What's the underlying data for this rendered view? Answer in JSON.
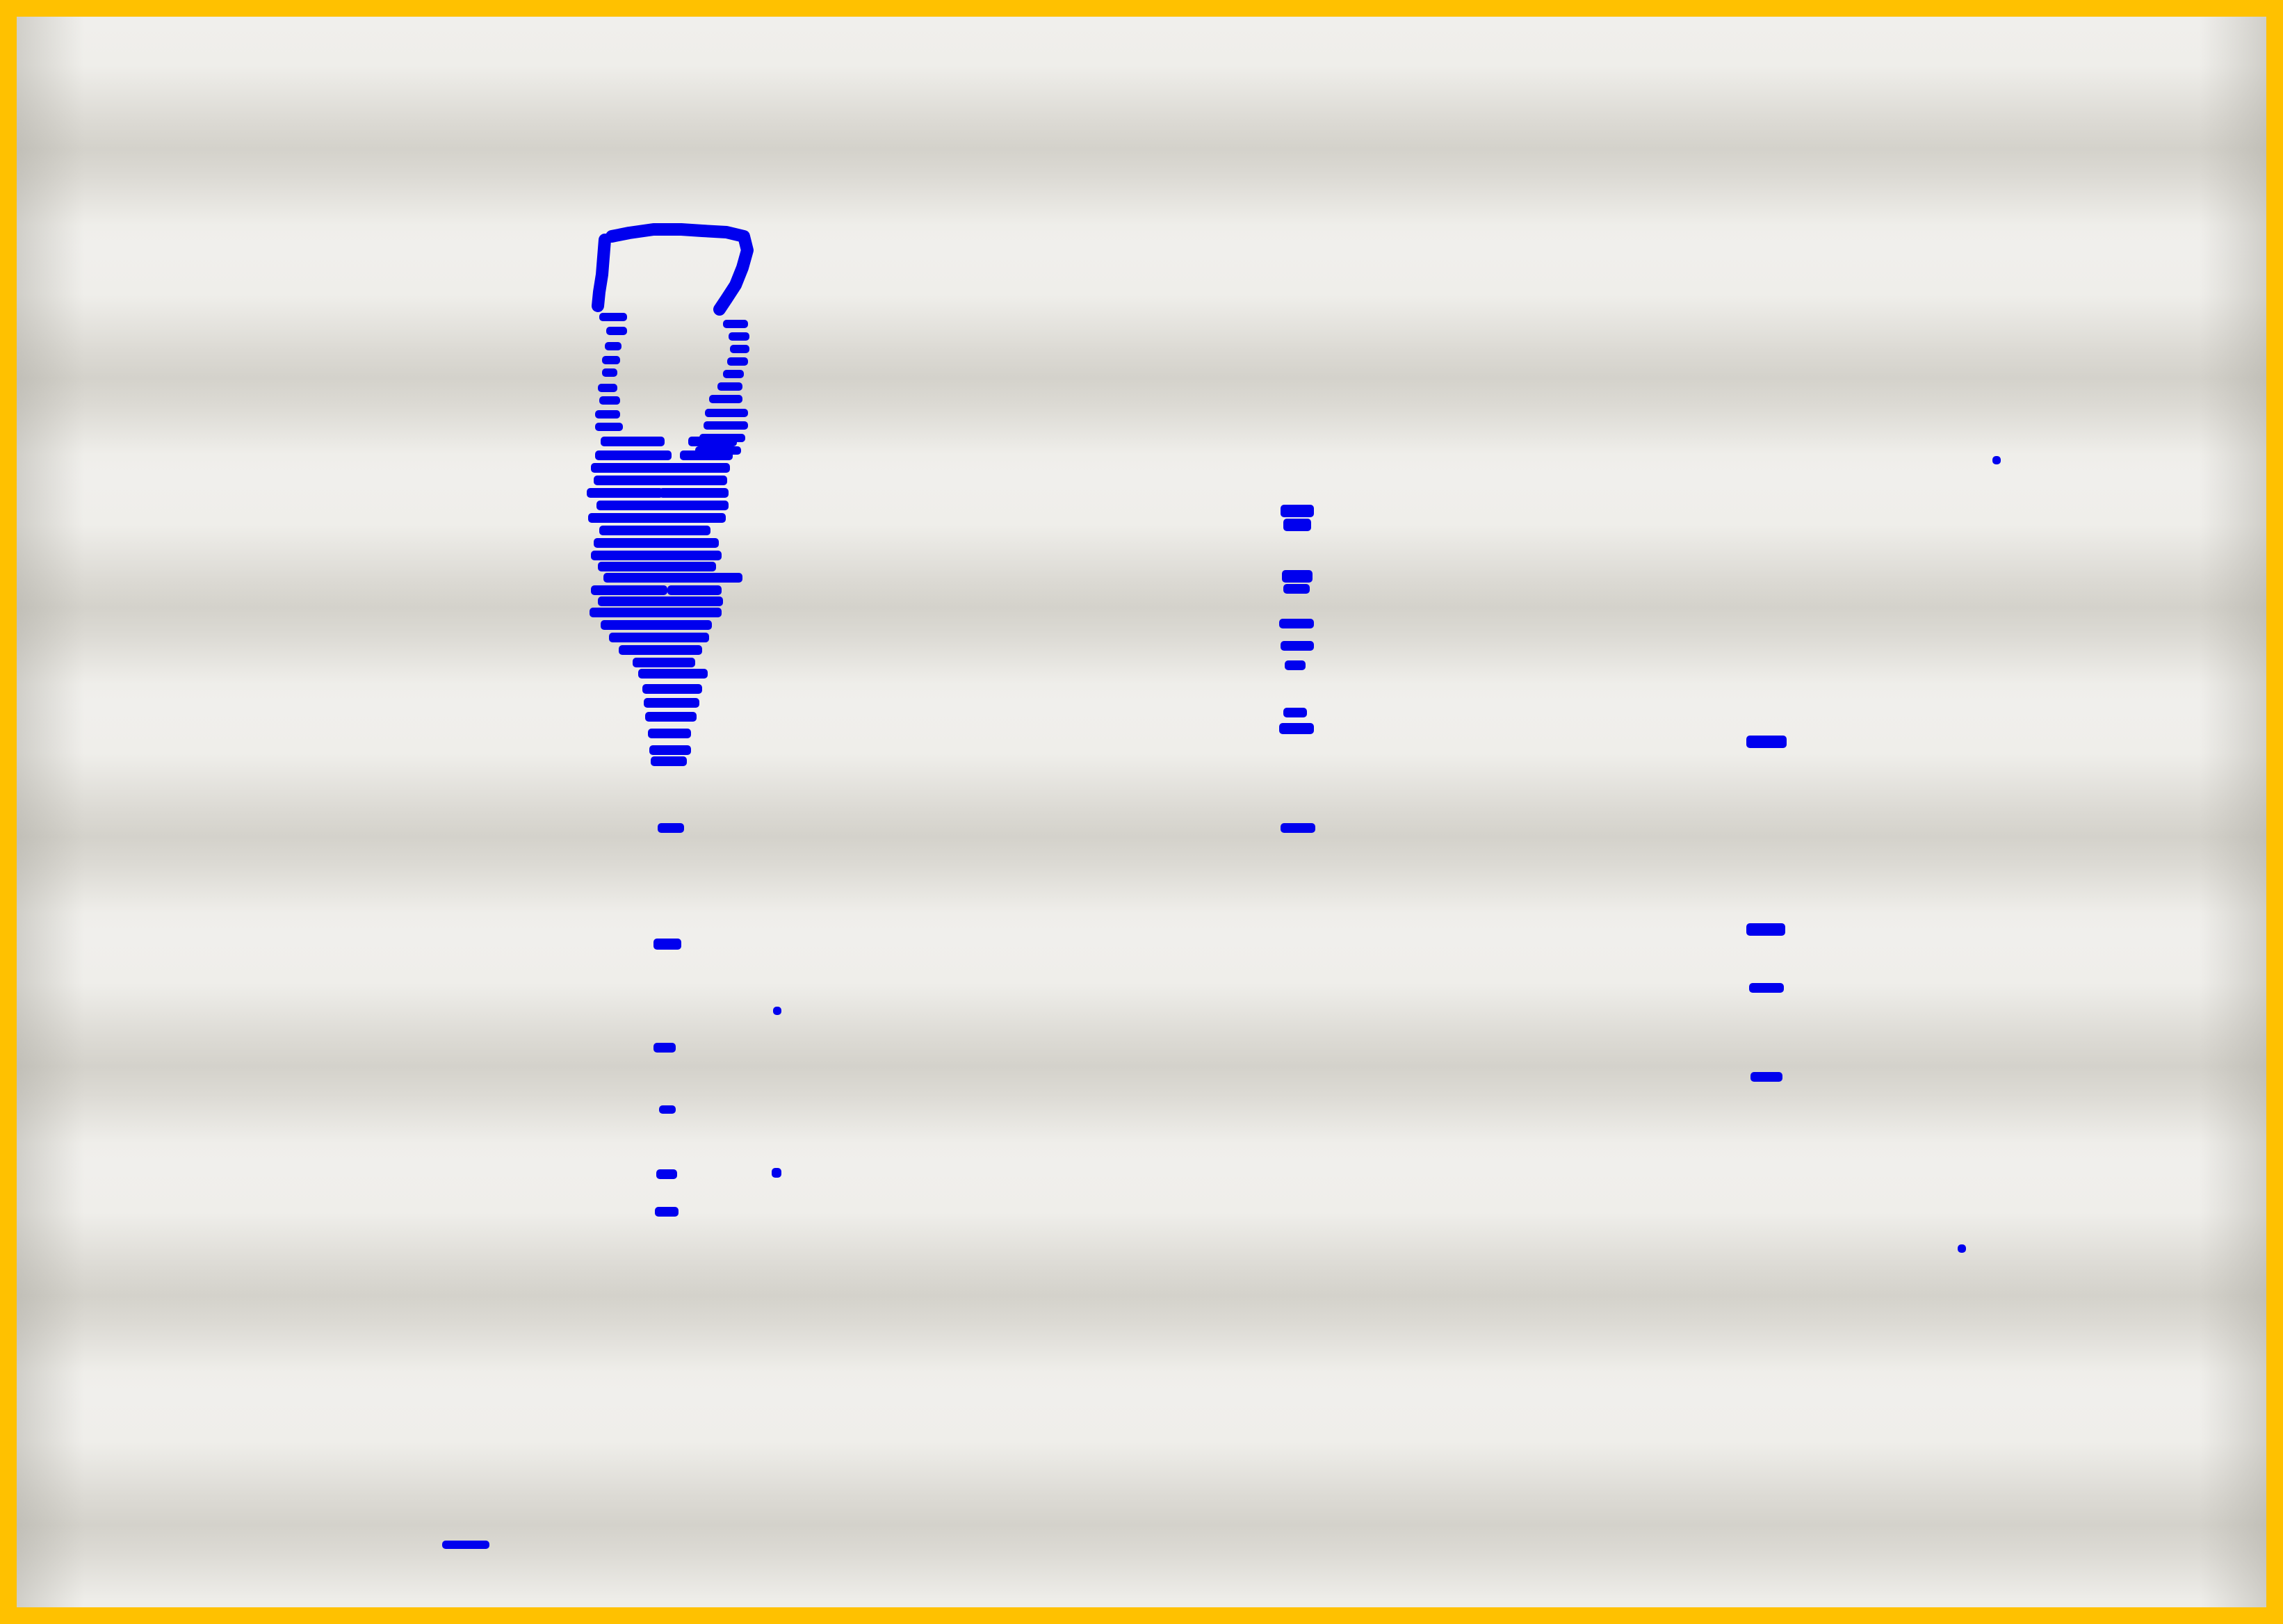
{
  "image": {
    "frame_color": "#ffc100",
    "background_colors": [
      "#f0efec",
      "#d4d2cb"
    ],
    "mark_color": "#0000ee"
  }
}
